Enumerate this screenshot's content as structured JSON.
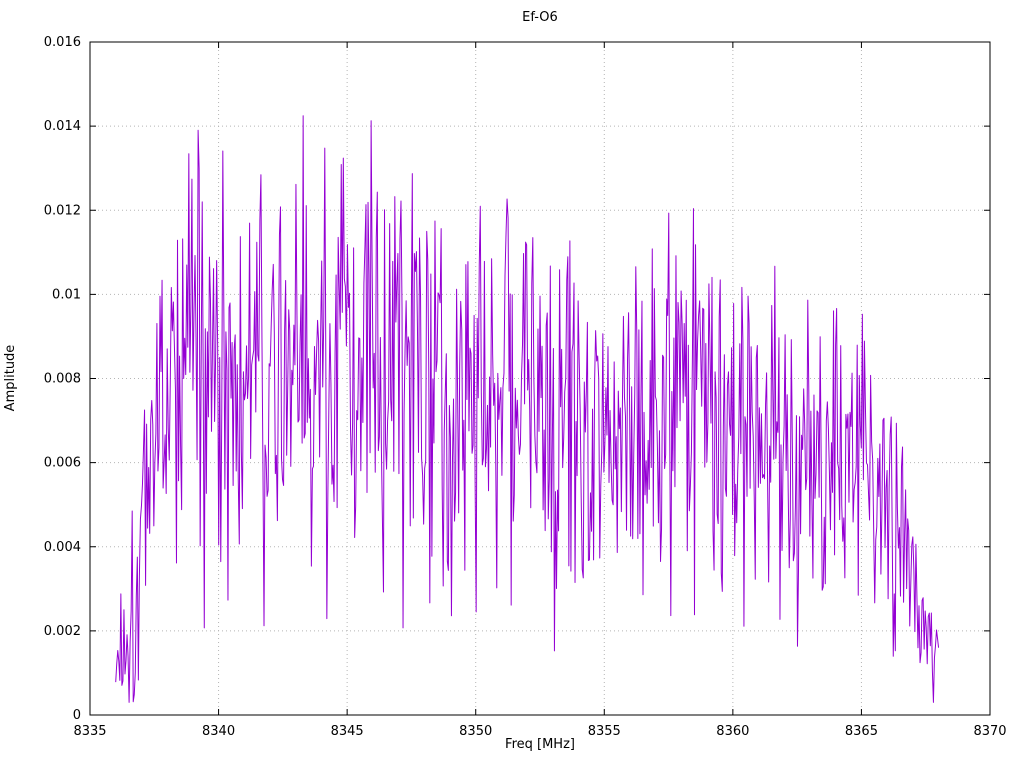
{
  "page": {
    "background": "#ffffff",
    "border_color": "#000000"
  },
  "chart_data": {
    "type": "line",
    "title": "Ef-O6",
    "xlabel": "Freq [MHz]",
    "ylabel": "Amplitude",
    "xlim": [
      8335,
      8370
    ],
    "ylim": [
      0,
      0.016
    ],
    "grid": "dotted",
    "grid_color": "#b5b5b5",
    "line_color": "#9400d3",
    "legend": "none",
    "xticks": {
      "values": [
        8335,
        8340,
        8345,
        8350,
        8355,
        8360,
        8365,
        8370
      ],
      "labels": [
        "8335",
        "8340",
        "8345",
        "8350",
        "8355",
        "8360",
        "8365",
        "8370"
      ]
    },
    "yticks": {
      "values": [
        0,
        0.002,
        0.004,
        0.006,
        0.008,
        0.01,
        0.012,
        0.014,
        0.016
      ],
      "labels": [
        "0",
        "0.002",
        "0.004",
        "0.006",
        "0.008",
        "0.01",
        "0.012",
        "0.014",
        "0.016"
      ]
    },
    "series": [
      {
        "name": "Ef-O6",
        "x_range": [
          8336.0,
          8368.0
        ],
        "num_points": 800,
        "seed": 1337,
        "noise_sigma_scale": 1.9,
        "clamp": [
          0.0003,
          0.0152
        ],
        "envelope_note": "points are [freq_MHz, mean_amplitude, spread]; noisy spectrum reconstructed from this envelope",
        "envelope": [
          [
            8336.0,
            0.0012,
            0.0007
          ],
          [
            8336.4,
            0.002,
            0.001
          ],
          [
            8336.8,
            0.003,
            0.0013
          ],
          [
            8337.2,
            0.0055,
            0.0018
          ],
          [
            8337.6,
            0.0075,
            0.0022
          ],
          [
            8338.2,
            0.0082,
            0.0026
          ],
          [
            8339.0,
            0.0088,
            0.0028
          ],
          [
            8340.0,
            0.0085,
            0.0026
          ],
          [
            8341.0,
            0.008,
            0.0025
          ],
          [
            8342.0,
            0.008,
            0.0026
          ],
          [
            8343.0,
            0.0082,
            0.0026
          ],
          [
            8344.0,
            0.0085,
            0.0027
          ],
          [
            8345.0,
            0.0083,
            0.0026
          ],
          [
            8346.0,
            0.008,
            0.0026
          ],
          [
            8347.0,
            0.0085,
            0.0028
          ],
          [
            8348.0,
            0.008,
            0.0026
          ],
          [
            8349.0,
            0.0082,
            0.0026
          ],
          [
            8350.0,
            0.008,
            0.0024
          ],
          [
            8351.0,
            0.0078,
            0.0024
          ],
          [
            8352.0,
            0.0075,
            0.0024
          ],
          [
            8353.0,
            0.0074,
            0.0024
          ],
          [
            8354.0,
            0.0076,
            0.0025
          ],
          [
            8355.0,
            0.0078,
            0.0025
          ],
          [
            8356.0,
            0.008,
            0.0027
          ],
          [
            8357.0,
            0.0072,
            0.0027
          ],
          [
            8358.0,
            0.0076,
            0.0024
          ],
          [
            8359.0,
            0.0078,
            0.0024
          ],
          [
            8360.0,
            0.0075,
            0.0023
          ],
          [
            8361.0,
            0.007,
            0.0022
          ],
          [
            8362.0,
            0.0066,
            0.0022
          ],
          [
            8363.0,
            0.0062,
            0.0021
          ],
          [
            8364.0,
            0.006,
            0.002
          ],
          [
            8365.0,
            0.0058,
            0.002
          ],
          [
            8365.8,
            0.0055,
            0.0018
          ],
          [
            8366.4,
            0.0045,
            0.0015
          ],
          [
            8367.0,
            0.0032,
            0.0011
          ],
          [
            8367.5,
            0.0022,
            0.0008
          ],
          [
            8368.0,
            0.0012,
            0.0006
          ]
        ]
      }
    ]
  }
}
